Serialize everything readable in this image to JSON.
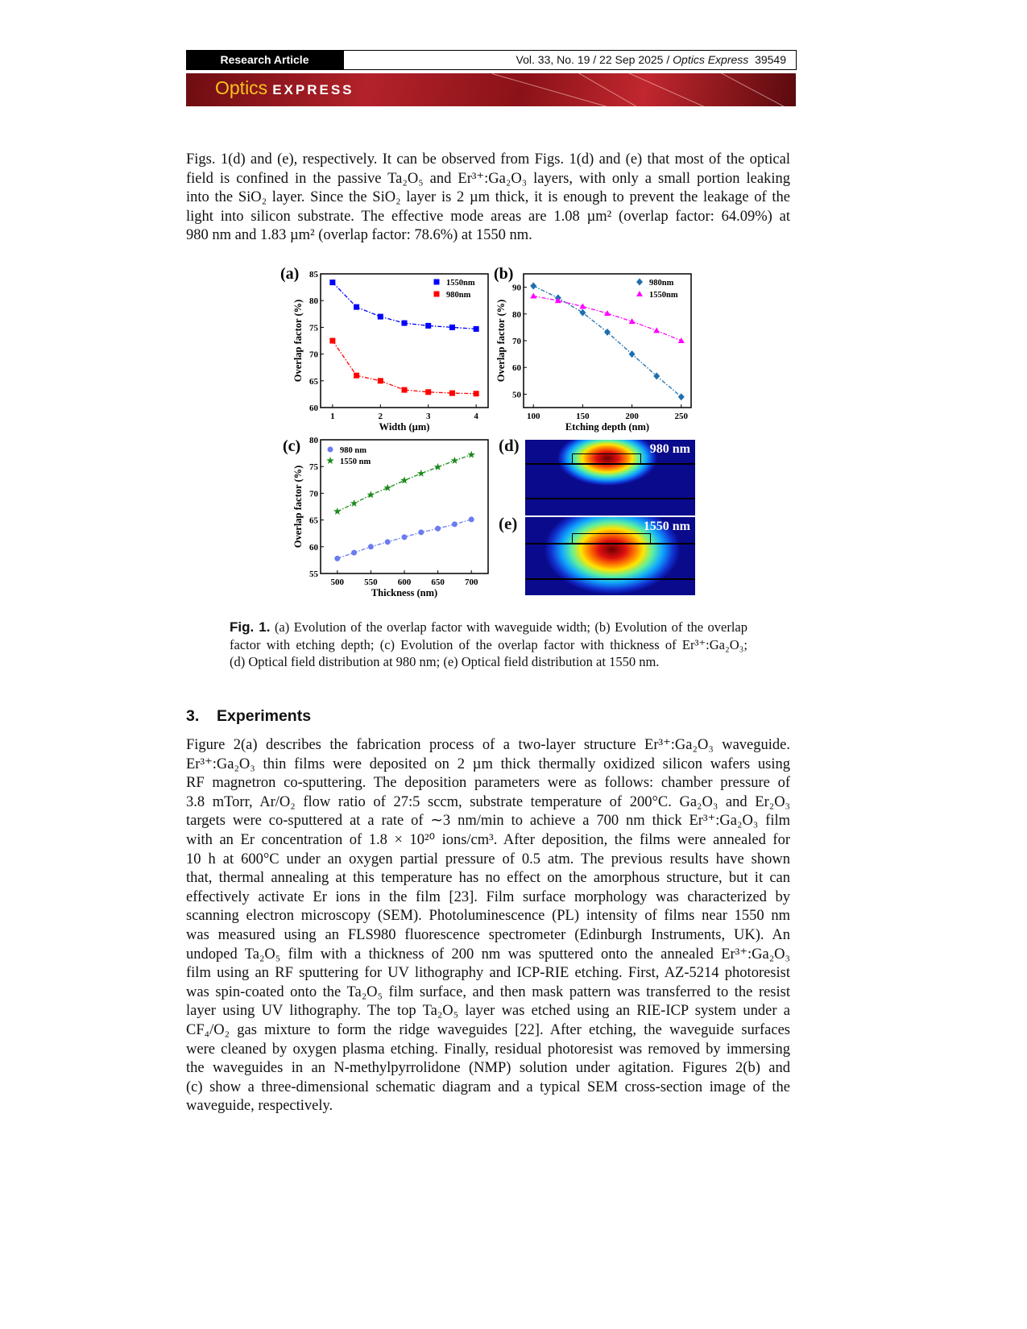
{
  "header": {
    "article_type": "Research Article",
    "citation": "Vol. 33, No. 19 / 22 Sep 2025 / ",
    "journal_italic": "Optics Express",
    "page_number": "39549",
    "logo_optics": "Optics",
    "logo_express": "EXPRESS"
  },
  "intro_paragraph": [
    "Figs. 1(d) and (e), respectively. It can be observed from Figs. 1(d) and (e) that most of the optical",
    "field is confined in the passive Ta₂O₅ and Er³⁺:Ga₂O₃ layers, with only a small portion leaking",
    "into the SiO₂ layer. Since the SiO₂ layer is 2 µm thick, it is enough to prevent the leakage of the",
    "light into silicon substrate. The effective mode areas are 1.08 µm² (overlap factor: 64.09%) at",
    "980 nm and 1.83 µm² (overlap factor: 78.6%) at 1550 nm."
  ],
  "figure": {
    "panel_d_label": "(d)",
    "panel_e_label": "(e)",
    "panel_d_text": "980 nm",
    "panel_e_text": "1550 nm",
    "colors": {
      "field_background": "#0a0a8c",
      "field_peak": "#8b0000"
    }
  },
  "chart_data": [
    {
      "type": "scatter",
      "panel": "(a)",
      "xlabel": "Width (µm)",
      "ylabel": "Overlap factor (%)",
      "xlim": [
        0.75,
        4.25
      ],
      "ylim": [
        60,
        85
      ],
      "xticks": [
        1,
        2,
        3,
        4
      ],
      "yticks": [
        60,
        65,
        70,
        75,
        80,
        85
      ],
      "legend": "top-right",
      "fit": "dash-dot curve",
      "series": [
        {
          "name": "1550nm",
          "color": "#0000ff",
          "marker": "square",
          "x": [
            1,
            1.5,
            2,
            2.5,
            3,
            3.5,
            4
          ],
          "y": [
            83.4,
            78.8,
            77.0,
            75.8,
            75.3,
            75.0,
            74.7
          ]
        },
        {
          "name": "980nm",
          "color": "#ff0000",
          "marker": "square",
          "x": [
            1,
            1.5,
            2,
            2.5,
            3,
            3.5,
            4
          ],
          "y": [
            72.5,
            66.0,
            65.0,
            63.3,
            62.9,
            62.7,
            62.6
          ]
        }
      ]
    },
    {
      "type": "line",
      "panel": "(b)",
      "xlabel": "Etching depth (nm)",
      "ylabel": "Overlap factor (%)",
      "xlim": [
        90,
        260
      ],
      "ylim": [
        45,
        95
      ],
      "xticks": [
        100,
        150,
        200,
        250
      ],
      "yticks": [
        50,
        60,
        70,
        80,
        90
      ],
      "legend": "top-right",
      "series": [
        {
          "name": "980nm",
          "color": "#1f6fae",
          "marker": "diamond",
          "x": [
            100,
            125,
            150,
            175,
            200,
            225,
            250
          ],
          "y": [
            90.5,
            86.0,
            80.5,
            73.2,
            65.0,
            56.8,
            49.0
          ]
        },
        {
          "name": "1550nm",
          "color": "#ff00ff",
          "marker": "triangle",
          "x": [
            100,
            125,
            150,
            175,
            200,
            225,
            250
          ],
          "y": [
            86.7,
            85.0,
            82.8,
            80.2,
            77.2,
            73.8,
            70.0
          ]
        }
      ]
    },
    {
      "type": "line",
      "panel": "(c)",
      "xlabel": "Thickness (nm)",
      "ylabel": "Overlap factor (%)",
      "xlim": [
        475,
        725
      ],
      "ylim": [
        55,
        80
      ],
      "xticks": [
        500,
        550,
        600,
        650,
        700
      ],
      "yticks": [
        55,
        60,
        65,
        70,
        75,
        80
      ],
      "legend": "top-left",
      "series": [
        {
          "name": "980 nm",
          "color": "#6b7cf0",
          "marker": "circle",
          "x": [
            500,
            525,
            550,
            575,
            600,
            625,
            650,
            675,
            700
          ],
          "y": [
            57.8,
            58.9,
            60.0,
            60.9,
            61.8,
            62.7,
            63.4,
            64.2,
            65.1
          ]
        },
        {
          "name": "1550 nm",
          "color": "#1a8a1a",
          "marker": "star",
          "x": [
            500,
            525,
            550,
            575,
            600,
            625,
            650,
            675,
            700
          ],
          "y": [
            66.6,
            68.1,
            69.7,
            71.0,
            72.4,
            73.7,
            74.9,
            76.1,
            77.2
          ]
        }
      ]
    }
  ],
  "caption": {
    "label": "Fig. 1.",
    "lines": [
      " (a) Evolution of the overlap factor with waveguide width; (b) Evolution of the overlap",
      "factor with etching depth; (c) Evolution of the overlap factor with thickness of Er³⁺:Ga₂O₃;",
      "(d) Optical field distribution at 980 nm; (e) Optical field distribution at 1550 nm."
    ]
  },
  "section": {
    "number": "3.",
    "title": "Experiments"
  },
  "section_paragraph": [
    "Figure 2(a) describes the fabrication process of a two-layer structure Er³⁺:Ga₂O₃ waveguide.",
    "Er³⁺:Ga₂O₃ thin films were deposited on 2 µm thick thermally oxidized silicon wafers using",
    "RF magnetron co-sputtering. The deposition parameters were as follows: chamber pressure of",
    "3.8 mTorr, Ar/O₂ flow ratio of 27:5 sccm, substrate temperature of 200°C. Ga₂O₃ and Er₂O₃",
    "targets were co-sputtered at a rate of ∼3 nm/min to achieve a 700 nm thick Er³⁺:Ga₂O₃ film",
    "with an Er concentration of 1.8 × 10²⁰ ions/cm³. After deposition, the films were annealed for",
    "10 h at 600°C under an oxygen partial pressure of 0.5 atm. The previous results have shown",
    "that, thermal annealing at this temperature has no effect on the amorphous structure, but it can",
    "effectively activate Er ions in the film [23]. Film surface morphology was characterized by",
    "scanning electron microscopy (SEM). Photoluminescence (PL) intensity of films near 1550 nm",
    "was measured using an FLS980 fluorescence spectrometer (Edinburgh Instruments, UK). An",
    "undoped Ta₂O₅ film with a thickness of 200 nm was sputtered onto the annealed Er³⁺:Ga₂O₃",
    "film using an RF sputtering for UV lithography and ICP-RIE etching. First, AZ-5214 photoresist",
    "was spin-coated onto the Ta₂O₅ film surface, and then mask pattern was transferred to the resist",
    "layer using UV lithography. The top Ta₂O₅ layer was etched using an RIE-ICP system under a",
    "CF₄/O₂ gas mixture to form the ridge waveguides [22]. After etching, the waveguide surfaces",
    "were cleaned by oxygen plasma etching. Finally, residual photoresist was removed by immersing",
    "the waveguides in an N-methylpyrrolidone (NMP) solution under agitation. Figures 2(b) and",
    "(c) show a three-dimensional schematic diagram and a typical SEM cross-section image of the",
    "waveguide, respectively."
  ]
}
